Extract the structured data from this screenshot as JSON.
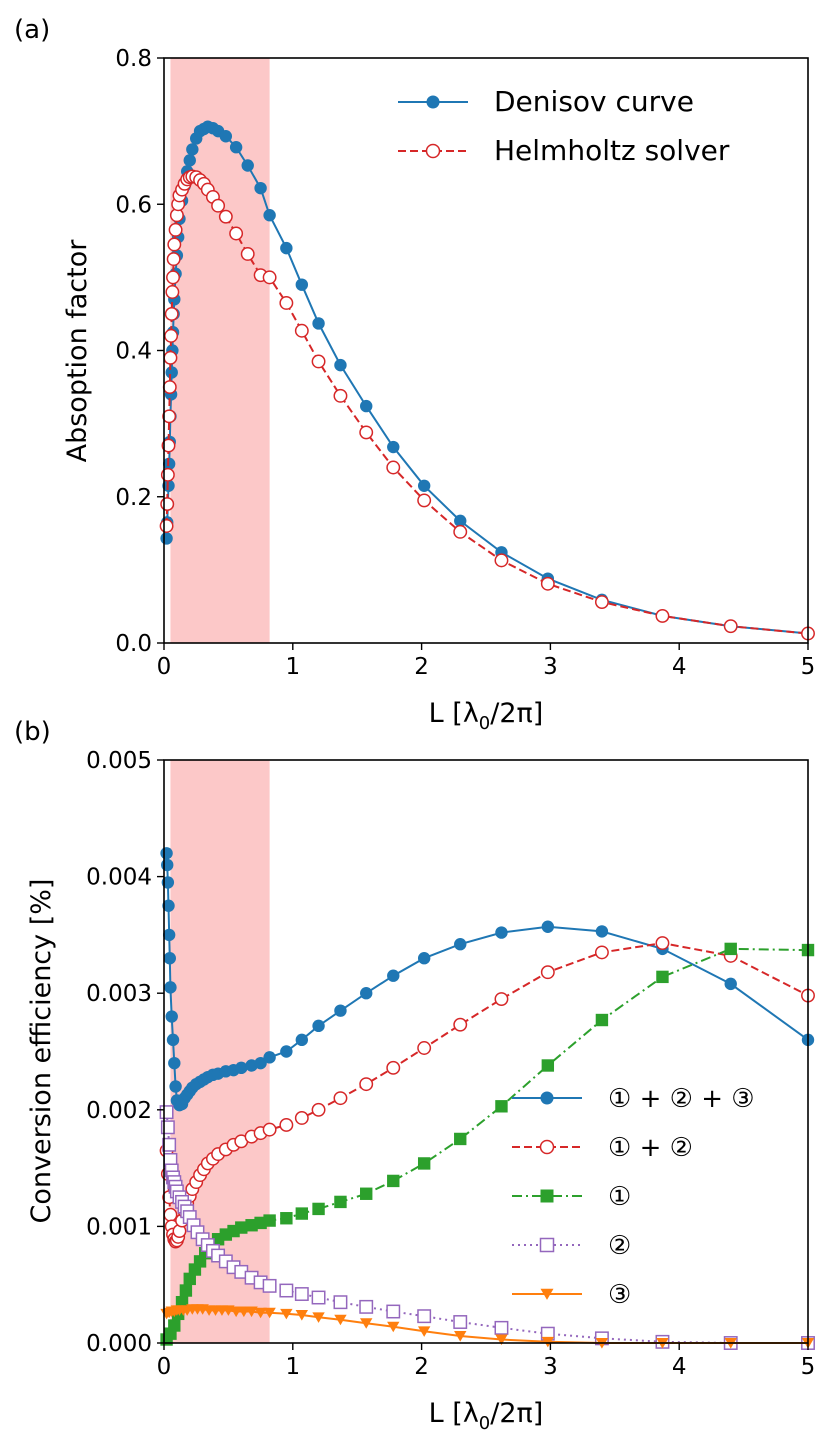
{
  "chart_data": [
    {
      "type": "line",
      "panel_label": "(a)",
      "xlabel": "L [λ0/2π]",
      "ylabel": "Absoption factor",
      "xlim": [
        0,
        5
      ],
      "ylim": [
        0,
        0.8
      ],
      "xticks": [
        0,
        1,
        2,
        3,
        4,
        5
      ],
      "xtick_labels": [
        "0",
        "1",
        "2",
        "3",
        "4",
        "5"
      ],
      "yticks": [
        0.0,
        0.2,
        0.4,
        0.6,
        0.8
      ],
      "ytick_labels": [
        "0.0",
        "0.2",
        "0.4",
        "0.6",
        "0.8"
      ],
      "highlight_span": [
        0.05,
        0.82
      ],
      "highlight_color": "#fcc8c8",
      "legend_position": "top-right",
      "series": [
        {
          "name": "Denisov curve",
          "color": "#1f77b4",
          "linestyle": "solid",
          "marker": "circle-filled",
          "x": [
            0.02,
            0.025,
            0.03,
            0.035,
            0.04,
            0.045,
            0.05,
            0.055,
            0.06,
            0.065,
            0.07,
            0.075,
            0.08,
            0.09,
            0.1,
            0.11,
            0.12,
            0.14,
            0.16,
            0.18,
            0.2,
            0.22,
            0.25,
            0.28,
            0.31,
            0.34,
            0.38,
            0.42,
            0.48,
            0.56,
            0.65,
            0.75,
            0.82,
            0.95,
            1.07,
            1.2,
            1.37,
            1.57,
            1.78,
            2.02,
            2.3,
            2.62,
            2.98,
            3.4,
            3.87,
            4.4,
            5.0
          ],
          "y": [
            0.143,
            0.165,
            0.19,
            0.215,
            0.245,
            0.275,
            0.31,
            0.34,
            0.37,
            0.4,
            0.425,
            0.45,
            0.47,
            0.505,
            0.53,
            0.555,
            0.58,
            0.605,
            0.625,
            0.645,
            0.66,
            0.675,
            0.69,
            0.7,
            0.703,
            0.706,
            0.704,
            0.7,
            0.693,
            0.678,
            0.653,
            0.622,
            0.585,
            0.54,
            0.49,
            0.437,
            0.38,
            0.324,
            0.268,
            0.215,
            0.167,
            0.124,
            0.088,
            0.059,
            0.037,
            0.023,
            0.013
          ]
        },
        {
          "name": "Helmholtz solver",
          "color": "#d62728",
          "linestyle": "dashed",
          "marker": "circle-open",
          "x": [
            0.02,
            0.025,
            0.03,
            0.035,
            0.04,
            0.045,
            0.05,
            0.055,
            0.06,
            0.065,
            0.07,
            0.075,
            0.08,
            0.09,
            0.1,
            0.11,
            0.12,
            0.14,
            0.16,
            0.18,
            0.2,
            0.22,
            0.25,
            0.28,
            0.31,
            0.34,
            0.38,
            0.42,
            0.48,
            0.56,
            0.65,
            0.75,
            0.82,
            0.95,
            1.07,
            1.2,
            1.37,
            1.57,
            1.78,
            2.02,
            2.3,
            2.62,
            2.98,
            3.4,
            3.87,
            4.4,
            5.0
          ],
          "y": [
            0.16,
            0.19,
            0.23,
            0.27,
            0.31,
            0.35,
            0.39,
            0.42,
            0.45,
            0.48,
            0.5,
            0.525,
            0.545,
            0.565,
            0.585,
            0.6,
            0.612,
            0.62,
            0.628,
            0.634,
            0.637,
            0.638,
            0.637,
            0.633,
            0.628,
            0.62,
            0.61,
            0.598,
            0.583,
            0.56,
            0.532,
            0.503,
            0.5,
            0.465,
            0.427,
            0.385,
            0.338,
            0.288,
            0.24,
            0.195,
            0.152,
            0.113,
            0.081,
            0.056,
            0.037,
            0.023,
            0.013
          ]
        }
      ]
    },
    {
      "type": "line",
      "panel_label": "(b)",
      "xlabel": "L [λ0/2π]",
      "ylabel": "Conversion efficiency [%]",
      "xlim": [
        0,
        5
      ],
      "ylim": [
        0,
        0.005
      ],
      "xticks": [
        0,
        1,
        2,
        3,
        4,
        5
      ],
      "xtick_labels": [
        "0",
        "1",
        "2",
        "3",
        "4",
        "5"
      ],
      "yticks": [
        0.0,
        0.001,
        0.002,
        0.003,
        0.004,
        0.005
      ],
      "ytick_labels": [
        "0.000",
        "0.001",
        "0.002",
        "0.003",
        "0.004",
        "0.005"
      ],
      "highlight_span": [
        0.05,
        0.82
      ],
      "highlight_color": "#fcc8c8",
      "legend_position": "center-right",
      "series": [
        {
          "name": "① + ② + ③",
          "color": "#1f77b4",
          "linestyle": "solid",
          "marker": "circle-filled",
          "x": [
            0.02,
            0.025,
            0.03,
            0.035,
            0.04,
            0.045,
            0.05,
            0.06,
            0.07,
            0.08,
            0.09,
            0.1,
            0.12,
            0.14,
            0.16,
            0.18,
            0.2,
            0.22,
            0.25,
            0.28,
            0.31,
            0.34,
            0.38,
            0.42,
            0.48,
            0.54,
            0.6,
            0.68,
            0.75,
            0.82,
            0.95,
            1.07,
            1.2,
            1.37,
            1.57,
            1.78,
            2.02,
            2.3,
            2.62,
            2.98,
            3.4,
            3.87,
            4.4,
            5.0
          ],
          "y": [
            0.0042,
            0.0041,
            0.00395,
            0.00375,
            0.0035,
            0.0033,
            0.00305,
            0.0028,
            0.0026,
            0.0024,
            0.0022,
            0.00208,
            0.00204,
            0.00205,
            0.0021,
            0.00213,
            0.00216,
            0.00219,
            0.00222,
            0.00224,
            0.00226,
            0.00228,
            0.0023,
            0.00231,
            0.00233,
            0.00234,
            0.00236,
            0.00238,
            0.0024,
            0.00245,
            0.0025,
            0.0026,
            0.00272,
            0.00285,
            0.003,
            0.00315,
            0.0033,
            0.00342,
            0.00352,
            0.00357,
            0.00353,
            0.00338,
            0.00308,
            0.0026
          ]
        },
        {
          "name": "① + ②",
          "color": "#d62728",
          "linestyle": "dashed",
          "marker": "circle-open",
          "x": [
            0.02,
            0.03,
            0.04,
            0.05,
            0.06,
            0.07,
            0.08,
            0.09,
            0.1,
            0.11,
            0.12,
            0.14,
            0.16,
            0.18,
            0.2,
            0.22,
            0.25,
            0.28,
            0.31,
            0.34,
            0.38,
            0.42,
            0.48,
            0.54,
            0.6,
            0.68,
            0.75,
            0.82,
            0.95,
            1.07,
            1.2,
            1.37,
            1.57,
            1.78,
            2.02,
            2.3,
            2.62,
            2.98,
            3.4,
            3.87,
            4.4,
            5.0
          ],
          "y": [
            0.00165,
            0.00145,
            0.00125,
            0.0011,
            0.001,
            0.00093,
            0.00089,
            0.00087,
            0.00088,
            0.00091,
            0.00096,
            0.00105,
            0.00113,
            0.0012,
            0.00126,
            0.00132,
            0.00138,
            0.00144,
            0.00149,
            0.00154,
            0.00158,
            0.00162,
            0.00166,
            0.0017,
            0.00173,
            0.00177,
            0.0018,
            0.00183,
            0.00187,
            0.00193,
            0.002,
            0.0021,
            0.00222,
            0.00236,
            0.00253,
            0.00273,
            0.00295,
            0.00318,
            0.00335,
            0.00343,
            0.00332,
            0.00298
          ]
        },
        {
          "name": "①",
          "color": "#2ca02c",
          "linestyle": "dashdot",
          "marker": "square-filled",
          "x": [
            0.02,
            0.05,
            0.08,
            0.11,
            0.14,
            0.17,
            0.2,
            0.24,
            0.28,
            0.32,
            0.36,
            0.42,
            0.48,
            0.54,
            0.6,
            0.68,
            0.75,
            0.82,
            0.95,
            1.07,
            1.2,
            1.37,
            1.57,
            1.78,
            2.02,
            2.3,
            2.62,
            2.98,
            3.4,
            3.87,
            4.4,
            5.0
          ],
          "y": [
            3e-05,
            8e-05,
            0.00015,
            0.00025,
            0.00035,
            0.00045,
            0.00055,
            0.00063,
            0.0007,
            0.00077,
            0.00083,
            0.00089,
            0.00093,
            0.00096,
            0.00099,
            0.00101,
            0.00103,
            0.00105,
            0.00107,
            0.00111,
            0.00115,
            0.00121,
            0.00128,
            0.00139,
            0.00154,
            0.00175,
            0.00203,
            0.00238,
            0.00277,
            0.00314,
            0.00338,
            0.00337
          ]
        },
        {
          "name": "②",
          "color": "#9467bd",
          "linestyle": "dotted",
          "marker": "square-open",
          "x": [
            0.02,
            0.03,
            0.04,
            0.05,
            0.06,
            0.07,
            0.08,
            0.09,
            0.1,
            0.12,
            0.14,
            0.16,
            0.18,
            0.2,
            0.23,
            0.26,
            0.3,
            0.34,
            0.38,
            0.42,
            0.48,
            0.54,
            0.6,
            0.68,
            0.75,
            0.82,
            0.95,
            1.07,
            1.2,
            1.37,
            1.57,
            1.78,
            2.02,
            2.3,
            2.62,
            2.98,
            3.4,
            3.87,
            4.4,
            5.0
          ],
          "y": [
            0.00198,
            0.00185,
            0.0017,
            0.00157,
            0.00148,
            0.00142,
            0.00138,
            0.00134,
            0.0013,
            0.00125,
            0.00121,
            0.00117,
            0.00113,
            0.00108,
            0.00101,
            0.00095,
            0.00089,
            0.00084,
            0.00079,
            0.00075,
            0.0007,
            0.00065,
            0.00061,
            0.00056,
            0.00052,
            0.00049,
            0.00045,
            0.00042,
            0.00039,
            0.00035,
            0.00031,
            0.00027,
            0.00023,
            0.00018,
            0.00013,
            8e-05,
            4e-05,
            1e-05,
            0.0,
            0.0
          ]
        },
        {
          "name": "③",
          "color": "#ff7f0e",
          "linestyle": "solid",
          "marker": "triangle-down-filled",
          "x": [
            0.02,
            0.04,
            0.06,
            0.08,
            0.1,
            0.12,
            0.15,
            0.18,
            0.22,
            0.26,
            0.3,
            0.35,
            0.4,
            0.45,
            0.5,
            0.56,
            0.62,
            0.68,
            0.75,
            0.82,
            0.95,
            1.07,
            1.2,
            1.37,
            1.57,
            1.78,
            2.02,
            2.3,
            2.62,
            2.98,
            3.4,
            3.87,
            4.4,
            5.0
          ],
          "y": [
            0.00025,
            0.00026,
            0.00027,
            0.00027,
            0.00028,
            0.00028,
            0.00028,
            0.00028,
            0.00029,
            0.00029,
            0.00029,
            0.00028,
            0.00028,
            0.00028,
            0.00028,
            0.00027,
            0.00027,
            0.00027,
            0.00026,
            0.00026,
            0.00025,
            0.00024,
            0.00022,
            0.0002,
            0.00017,
            0.00014,
            0.0001,
            6e-05,
            3e-05,
            1e-05,
            0.0,
            0.0,
            0.0,
            0.0
          ]
        }
      ]
    }
  ]
}
